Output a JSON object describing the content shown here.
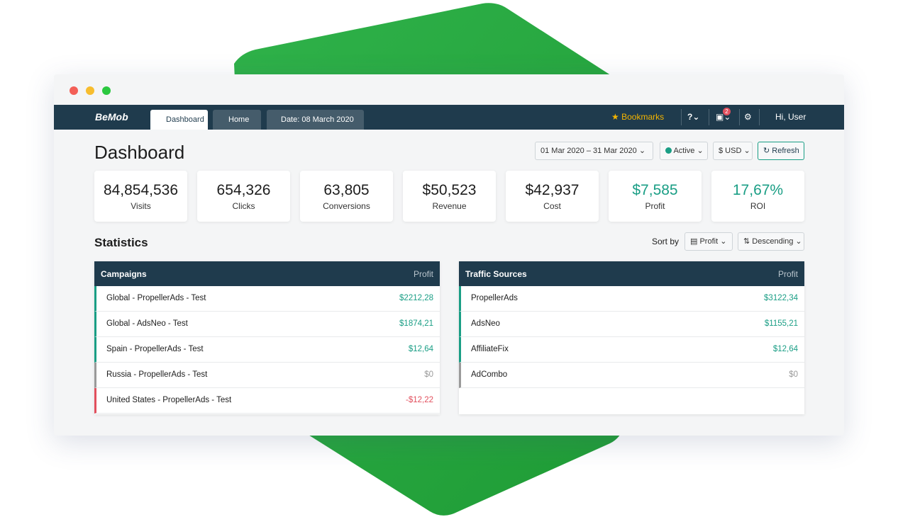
{
  "nav": {
    "brand": "BeMob",
    "tabs": [
      "Dashboard",
      "Home",
      "Date: 08 March 2020"
    ],
    "bookmarks": "Bookmarks",
    "notifications": "2",
    "user": "Hi, User"
  },
  "header": {
    "title": "Dashboard",
    "date_range": "01 Mar 2020 – 31 Mar 2020",
    "status": "Active",
    "currency": "$ USD",
    "refresh": "Refresh"
  },
  "kpis": [
    {
      "value": "84,854,536",
      "label": "Visits",
      "color": "#1d1d1d"
    },
    {
      "value": "654,326",
      "label": "Clicks",
      "color": "#1d1d1d"
    },
    {
      "value": "63,805",
      "label": "Conversions",
      "color": "#1d1d1d"
    },
    {
      "value": "$50,523",
      "label": "Revenue",
      "color": "#1d1d1d"
    },
    {
      "value": "$42,937",
      "label": "Cost",
      "color": "#1d1d1d"
    },
    {
      "value": "$7,585",
      "label": "Profit",
      "color": "#1a9e85"
    },
    {
      "value": "17,67%",
      "label": "ROI",
      "color": "#1a9e85"
    }
  ],
  "statistics": {
    "title": "Statistics",
    "sort_label": "Sort by",
    "sort_field": "Profit",
    "sort_order": "Descending"
  },
  "tables": [
    {
      "header": [
        "Campaigns",
        "Profit"
      ],
      "rows": [
        {
          "name": "Global - PropellerAds - Test",
          "profit": "$2212,28",
          "color": "#1a9e85"
        },
        {
          "name": "Global - AdsNeo - Test",
          "profit": "$1874,21",
          "color": "#1a9e85"
        },
        {
          "name": "Spain - PropellerAds - Test",
          "profit": "$12,64",
          "color": "#1a9e85"
        },
        {
          "name": "Russia - PropellerAds - Test",
          "profit": "$0",
          "color": "#9a9a9a"
        },
        {
          "name": "United States - PropellerAds - Test",
          "profit": "-$12,22",
          "color": "#e2505e"
        }
      ]
    },
    {
      "header": [
        "Traffic Sources",
        "Profit"
      ],
      "rows": [
        {
          "name": "PropellerAds",
          "profit": "$3122,34",
          "color": "#1a9e85"
        },
        {
          "name": "AdsNeo",
          "profit": "$1155,21",
          "color": "#1a9e85"
        },
        {
          "name": "AffiliateFix",
          "profit": "$12,64",
          "color": "#1a9e85"
        },
        {
          "name": "AdCombo",
          "profit": "$0",
          "color": "#9a9a9a"
        }
      ]
    }
  ]
}
